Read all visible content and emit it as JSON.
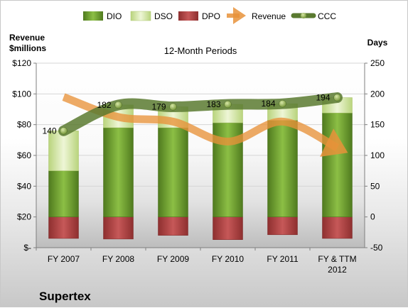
{
  "chart_data": {
    "type": "bar",
    "title": "12-Month Periods",
    "company": "Supertex",
    "left_axis_label": [
      "Revenue",
      "$millions"
    ],
    "right_axis_label": "Days",
    "categories": [
      "FY 2007",
      "FY 2008",
      "FY 2009",
      "FY 2010",
      "FY 2011",
      "FY & TTM 2012"
    ],
    "left_axis": {
      "min": 0,
      "max": 120,
      "ticks": [
        "$-",
        "$20",
        "$40",
        "$60",
        "$80",
        "$100",
        "$120"
      ]
    },
    "right_axis": {
      "min": -50,
      "max": 250,
      "ticks": [
        "-50",
        "0",
        "50",
        "100",
        "150",
        "200",
        "250"
      ]
    },
    "grid": true,
    "legend_placement": "top",
    "series": [
      {
        "name": "DIO",
        "kind": "bar-stacked",
        "axis": "days",
        "color": "#6b9a2e",
        "values": [
          75,
          145,
          145,
          153,
          157,
          169
        ]
      },
      {
        "name": "DSO",
        "kind": "bar-stacked",
        "axis": "days",
        "color": "#d6e8a8",
        "values": [
          65,
          37,
          34,
          30,
          27,
          25
        ]
      },
      {
        "name": "DPO",
        "kind": "bar-negative",
        "axis": "days",
        "color": "#b84a4a",
        "values": [
          -35,
          -36,
          -30,
          -37,
          -29,
          -35
        ]
      },
      {
        "name": "Revenue",
        "kind": "line-arrow",
        "axis": "revenue",
        "color": "#e8923a",
        "values": [
          98,
          85,
          82,
          69,
          82,
          65
        ]
      },
      {
        "name": "CCC",
        "kind": "line",
        "axis": "days",
        "color": "#5a7a30",
        "values": [
          140,
          182,
          179,
          183,
          184,
          194
        ]
      }
    ]
  }
}
